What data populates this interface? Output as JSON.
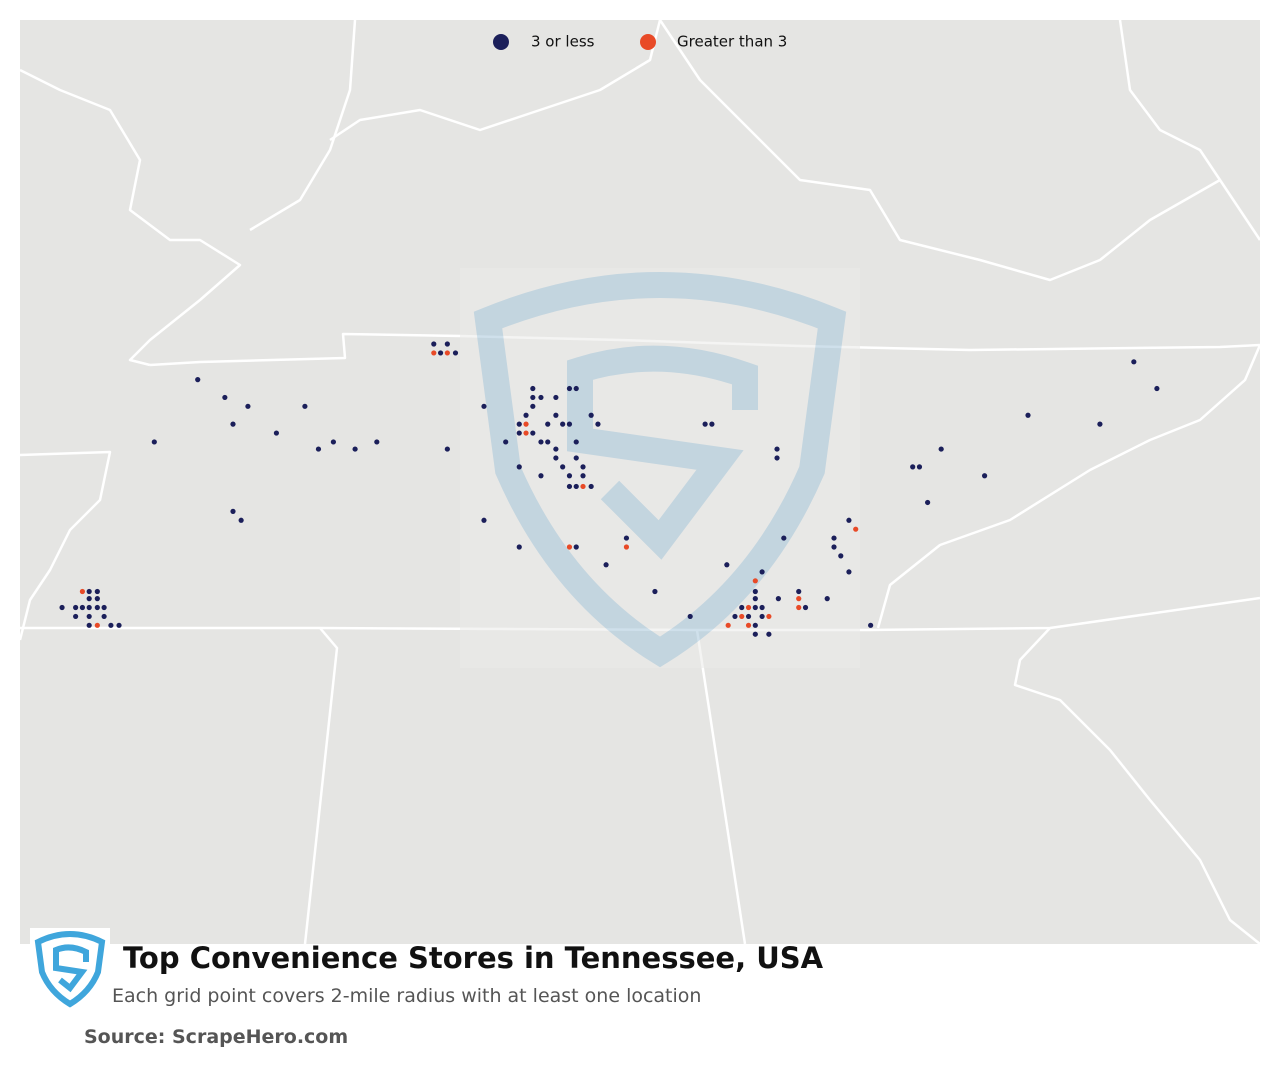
{
  "chart_data": {
    "type": "map",
    "title": "Top Convenience Stores in Tennessee, USA",
    "subtitle": "Each grid point covers 2-mile radius with at least one location",
    "source": "Source: ScrapeHero.com",
    "xlim": [
      -90.57,
      -81.43
    ],
    "ylim": [
      33.24,
      38.43
    ],
    "series": [
      {
        "name": "3 or less",
        "color": "#1b1f5a",
        "x": [
          -90.26,
          -90.16,
          -90.11,
          -90.06,
          -90.0,
          -89.95,
          -90.06,
          -90.0,
          -90.06,
          -90.0,
          -90.16,
          -90.06,
          -89.95,
          -90.06,
          -89.9,
          -89.84,
          -89.58,
          -89.26,
          -89.06,
          -88.89,
          -89.0,
          -88.68,
          -88.47,
          -88.37,
          -88.26,
          -88.1,
          -87.94,
          -87.42,
          -89.0,
          -88.94,
          -87.52,
          -87.42,
          -87.47,
          -87.36,
          -87.15,
          -86.99,
          -86.89,
          -86.89,
          -86.84,
          -86.79,
          -86.79,
          -86.79,
          -86.73,
          -86.68,
          -86.79,
          -86.73,
          -86.68,
          -86.62,
          -86.62,
          -86.62,
          -86.62,
          -86.57,
          -86.52,
          -86.52,
          -86.47,
          -86.57,
          -86.52,
          -86.52,
          -86.47,
          -86.42,
          -86.42,
          -86.36,
          -86.47,
          -86.89,
          -86.73,
          -86.36,
          -86.31,
          -86.47,
          -87.15,
          -86.89,
          -86.47,
          -86.25,
          -86.1,
          -85.89,
          -85.63,
          -85.52,
          -85.47,
          -84.99,
          -84.99,
          -85.36,
          -84.94,
          -85.1,
          -85.15,
          -85.15,
          -85.25,
          -85.3,
          -85.2,
          -85.15,
          -85.1,
          -85.15,
          -85.1,
          -85.15,
          -85.05,
          -84.98,
          -84.83,
          -84.78,
          -84.62,
          -84.57,
          -84.57,
          -84.52,
          -84.46,
          -84.46,
          -84.3,
          -83.99,
          -83.94,
          -83.88,
          -83.78,
          -83.46,
          -83.14,
          -82.61,
          -82.36,
          -82.19
        ],
        "values": [
          35.13,
          35.13,
          35.13,
          35.13,
          35.13,
          35.13,
          35.18,
          35.18,
          35.22,
          35.22,
          35.08,
          35.08,
          35.08,
          35.03,
          35.03,
          35.03,
          36.06,
          36.41,
          36.31,
          36.26,
          36.16,
          36.11,
          36.26,
          36.02,
          36.06,
          36.02,
          36.06,
          36.02,
          35.67,
          35.62,
          36.61,
          36.61,
          36.56,
          36.56,
          36.26,
          36.06,
          36.16,
          36.11,
          36.21,
          36.36,
          36.31,
          36.26,
          36.31,
          36.16,
          36.11,
          36.06,
          36.06,
          36.21,
          36.31,
          36.02,
          35.97,
          36.16,
          36.16,
          36.36,
          36.36,
          35.92,
          35.87,
          35.81,
          35.81,
          35.92,
          35.87,
          35.81,
          36.06,
          35.92,
          35.87,
          36.21,
          36.16,
          35.97,
          35.62,
          35.47,
          35.47,
          35.37,
          35.52,
          35.22,
          35.08,
          36.16,
          36.16,
          36.02,
          35.97,
          35.37,
          35.52,
          35.33,
          35.22,
          35.18,
          35.13,
          35.08,
          35.08,
          35.13,
          35.13,
          35.03,
          35.08,
          34.98,
          34.98,
          35.18,
          35.22,
          35.13,
          35.18,
          35.52,
          35.47,
          35.42,
          35.62,
          35.33,
          35.03,
          35.92,
          35.92,
          35.72,
          36.02,
          35.87,
          36.21,
          36.16,
          36.51,
          36.36
        ]
      },
      {
        "name": "Greater than 3",
        "color": "#e84a27",
        "x": [
          -90.11,
          -90.0,
          -87.52,
          -87.42,
          -86.84,
          -86.84,
          -86.42,
          -86.52,
          -86.1,
          -85.15,
          -85.2,
          -85.25,
          -85.35,
          -85.2,
          -85.05,
          -84.83,
          -84.83,
          -84.41
        ],
        "values": [
          35.22,
          35.03,
          36.56,
          36.56,
          36.16,
          36.11,
          35.81,
          35.47,
          35.47,
          35.28,
          35.13,
          35.08,
          35.03,
          35.03,
          35.08,
          35.18,
          35.13,
          35.57
        ]
      }
    ]
  }
}
